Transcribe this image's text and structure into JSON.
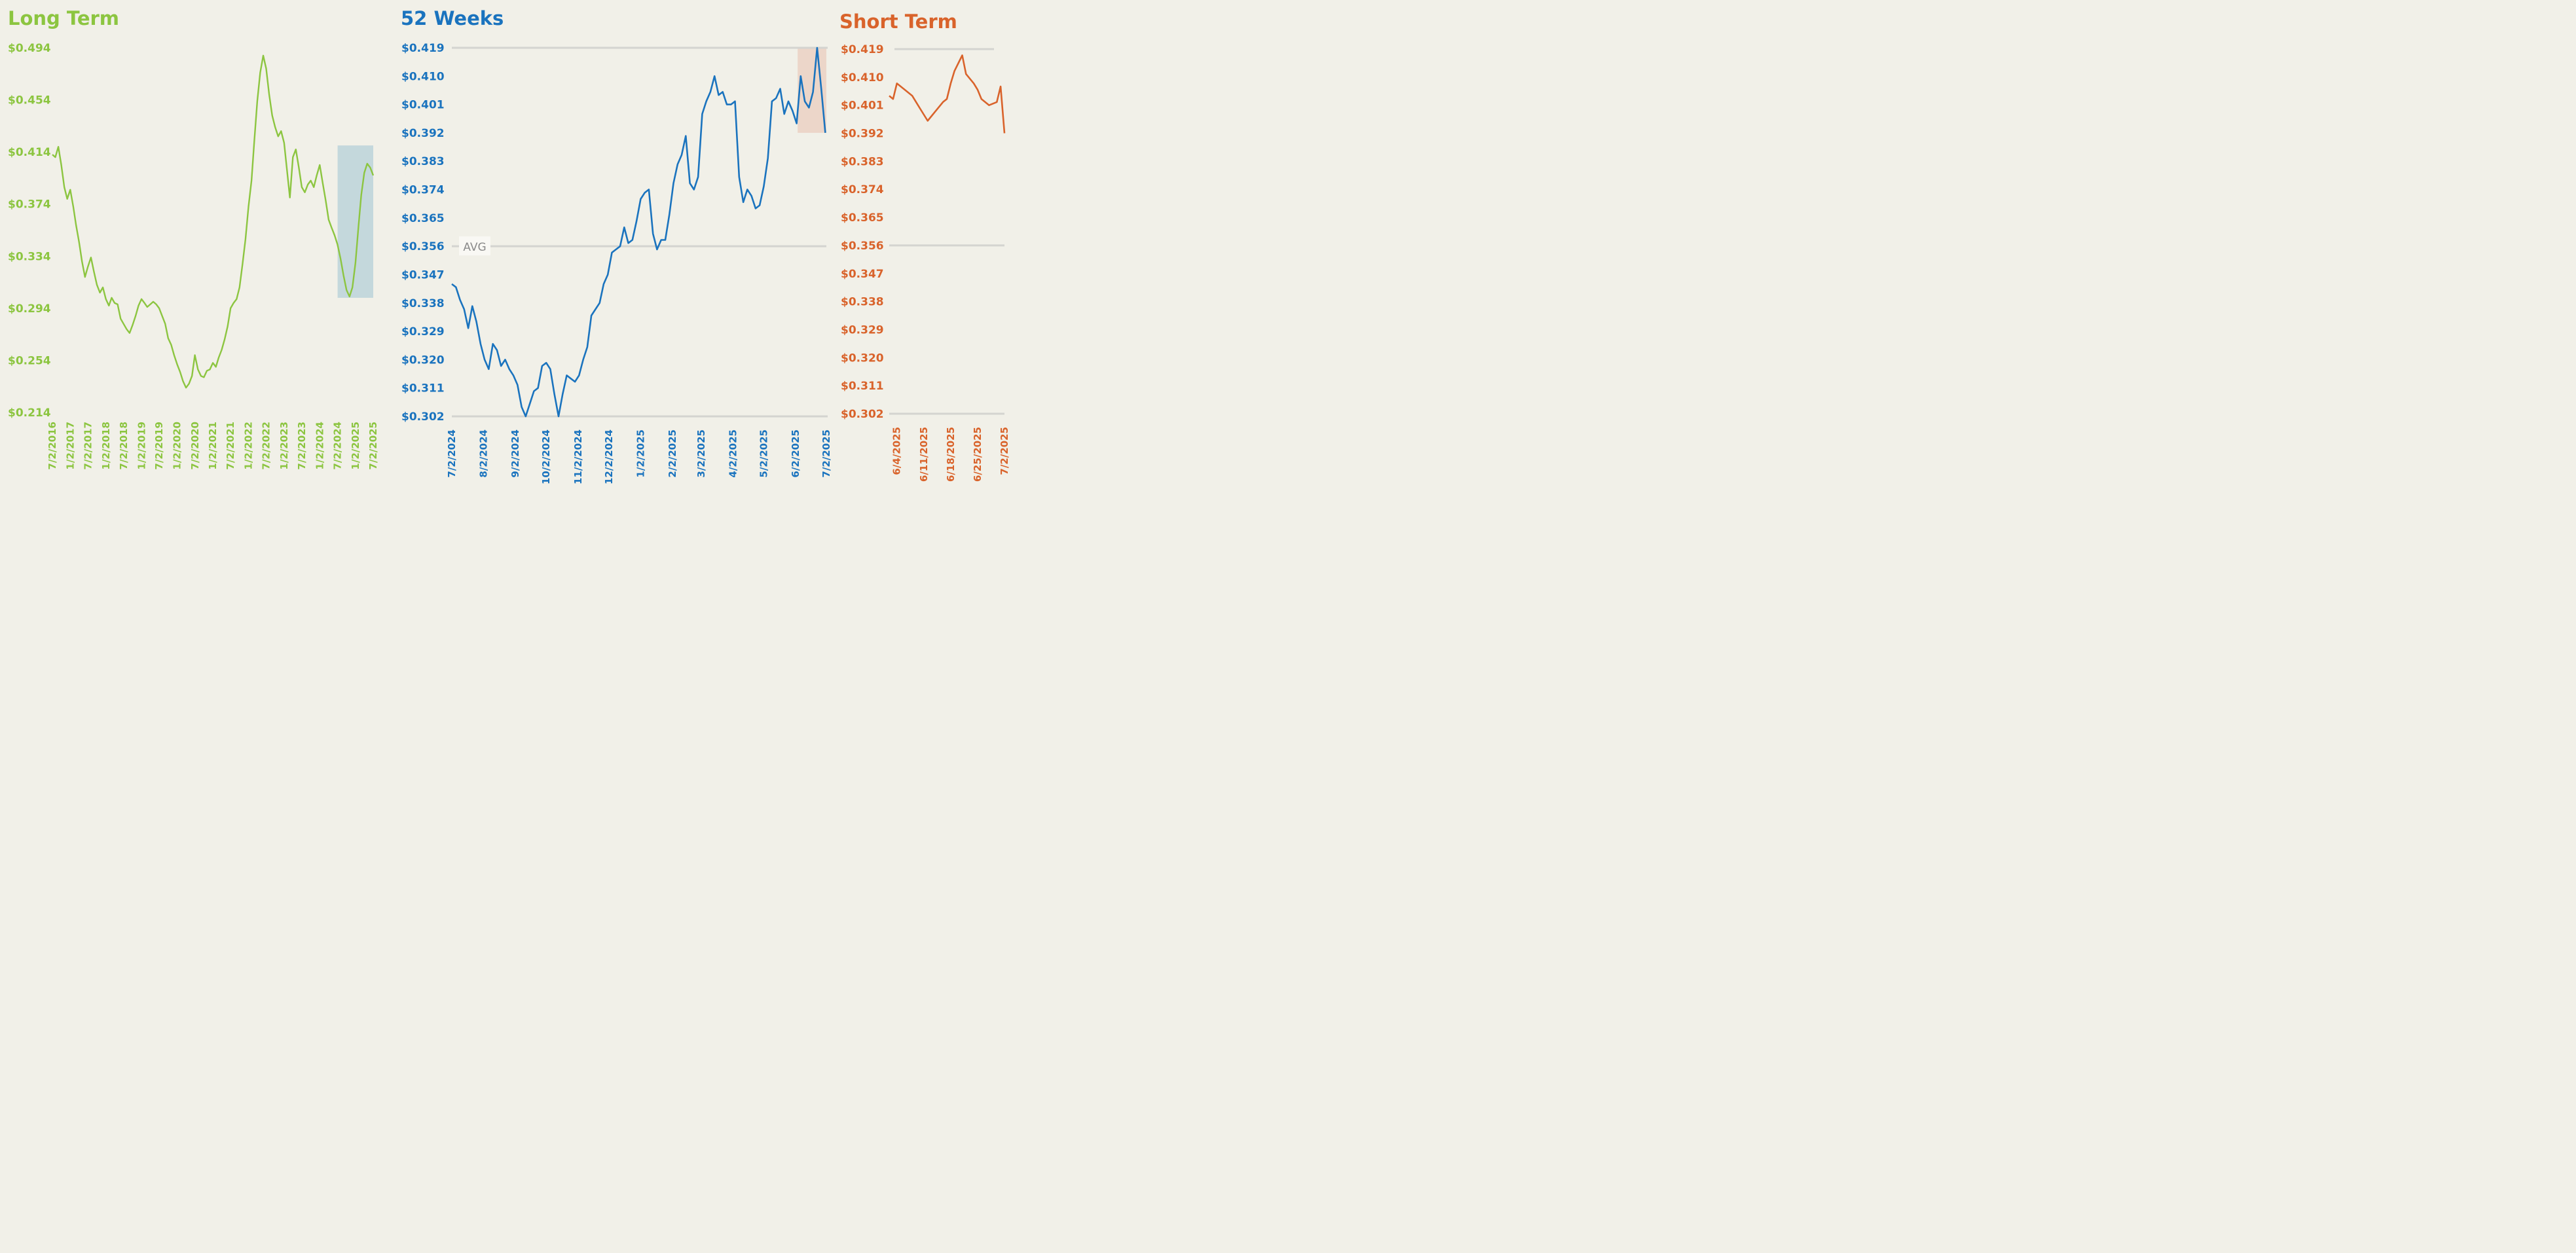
{
  "colors": {
    "long": "#8cc540",
    "weeks52": "#1a73be",
    "short": "#d9632b",
    "grid": "#d4d4d0",
    "long_highlight": "#c4d8dc",
    "weeks52_highlight": "#ecd6c9",
    "background": "#f1f0e8"
  },
  "chart_data": [
    {
      "id": "long",
      "type": "line",
      "title": "Long Term",
      "xlabel": "",
      "ylabel": "",
      "ylim": [
        0.214,
        0.494
      ],
      "xlim": [
        "2016-07-02",
        "2025-07-02"
      ],
      "y_ticks": [
        "$0.494",
        "$0.454",
        "$0.414",
        "$0.374",
        "$0.334",
        "$0.294",
        "$0.254",
        "$0.214"
      ],
      "x_ticks": [
        "7/2/2016",
        "1/2/2017",
        "7/2/2017",
        "1/2/2018",
        "7/2/2018",
        "1/2/2019",
        "7/2/2019",
        "1/2/2020",
        "7/2/2020",
        "1/2/2021",
        "7/2/2021",
        "1/2/2022",
        "7/2/2022",
        "1/2/2023",
        "7/2/2023",
        "1/2/2024",
        "7/2/2024",
        "1/2/2025",
        "7/2/2025"
      ],
      "grid": false,
      "highlight_range": {
        "x": [
          "2024-07-02",
          "2025-07-02"
        ],
        "y": [
          0.302,
          0.419
        ]
      },
      "series": [
        {
          "x": [
            "2016-07-02",
            "2016-08-01",
            "2016-09-01",
            "2016-10-01",
            "2016-11-01",
            "2016-12-01",
            "2017-01-01",
            "2017-02-01",
            "2017-03-01",
            "2017-04-01",
            "2017-05-01",
            "2017-06-01",
            "2017-07-01",
            "2017-08-01",
            "2017-09-01",
            "2017-10-01",
            "2017-11-01",
            "2017-12-01",
            "2018-01-01",
            "2018-02-01",
            "2018-03-01",
            "2018-04-01",
            "2018-05-01",
            "2018-06-01",
            "2018-07-01",
            "2018-08-01",
            "2018-09-01",
            "2018-10-01",
            "2018-11-01",
            "2018-12-01",
            "2019-01-01",
            "2019-02-01",
            "2019-03-01",
            "2019-04-01",
            "2019-05-01",
            "2019-06-01",
            "2019-07-01",
            "2019-08-01",
            "2019-09-01",
            "2019-10-01",
            "2019-11-01",
            "2019-12-01",
            "2020-01-01",
            "2020-02-01",
            "2020-03-01",
            "2020-04-01",
            "2020-05-01",
            "2020-06-01",
            "2020-07-01",
            "2020-08-01",
            "2020-09-01",
            "2020-10-01",
            "2020-11-01",
            "2020-12-01",
            "2021-01-01",
            "2021-02-01",
            "2021-03-01",
            "2021-04-01",
            "2021-05-01",
            "2021-06-01",
            "2021-07-01",
            "2021-08-01",
            "2021-09-01",
            "2021-10-01",
            "2021-11-01",
            "2021-12-01",
            "2022-01-01",
            "2022-02-01",
            "2022-03-01",
            "2022-04-01",
            "2022-05-01",
            "2022-06-01",
            "2022-07-01",
            "2022-08-01",
            "2022-09-01",
            "2022-10-01",
            "2022-11-01",
            "2022-12-01",
            "2023-01-01",
            "2023-02-01",
            "2023-03-01",
            "2023-04-01",
            "2023-05-01",
            "2023-06-01",
            "2023-07-01",
            "2023-08-01",
            "2023-09-01",
            "2023-10-01",
            "2023-11-01",
            "2023-12-01",
            "2024-01-01",
            "2024-02-01",
            "2024-03-01",
            "2024-04-01",
            "2024-05-01",
            "2024-06-01",
            "2024-07-01",
            "2024-08-01",
            "2024-09-01",
            "2024-10-01",
            "2024-11-01",
            "2024-12-01",
            "2025-01-01",
            "2025-02-01",
            "2025-03-01",
            "2025-04-01",
            "2025-05-01",
            "2025-06-01",
            "2025-07-02"
          ],
          "values": [
            0.412,
            0.41,
            0.418,
            0.404,
            0.387,
            0.378,
            0.385,
            0.372,
            0.358,
            0.345,
            0.33,
            0.318,
            0.326,
            0.333,
            0.322,
            0.312,
            0.306,
            0.31,
            0.301,
            0.296,
            0.302,
            0.298,
            0.297,
            0.286,
            0.282,
            0.278,
            0.275,
            0.281,
            0.288,
            0.296,
            0.301,
            0.298,
            0.295,
            0.297,
            0.299,
            0.297,
            0.294,
            0.288,
            0.282,
            0.271,
            0.266,
            0.258,
            0.251,
            0.245,
            0.238,
            0.233,
            0.236,
            0.242,
            0.258,
            0.247,
            0.242,
            0.241,
            0.246,
            0.247,
            0.252,
            0.249,
            0.256,
            0.262,
            0.27,
            0.28,
            0.294,
            0.298,
            0.301,
            0.31,
            0.328,
            0.347,
            0.372,
            0.392,
            0.422,
            0.453,
            0.475,
            0.488,
            0.478,
            0.458,
            0.442,
            0.433,
            0.426,
            0.43,
            0.421,
            0.399,
            0.379,
            0.41,
            0.416,
            0.402,
            0.387,
            0.383,
            0.389,
            0.392,
            0.387,
            0.396,
            0.404,
            0.39,
            0.377,
            0.362,
            0.356,
            0.35,
            0.343,
            0.332,
            0.319,
            0.308,
            0.303,
            0.31,
            0.329,
            0.357,
            0.381,
            0.398,
            0.405,
            0.402,
            0.396
          ]
        }
      ]
    },
    {
      "id": "weeks52",
      "type": "line",
      "title": "52 Weeks",
      "xlabel": "",
      "ylabel": "",
      "ylim": [
        0.302,
        0.419
      ],
      "xlim": [
        "2024-07-02",
        "2025-07-02"
      ],
      "y_ticks": [
        "$0.419",
        "$0.410",
        "$0.401",
        "$0.392",
        "$0.383",
        "$0.374",
        "$0.365",
        "$0.356",
        "$0.347",
        "$0.338",
        "$0.329",
        "$0.320",
        "$0.311",
        "$0.302"
      ],
      "x_ticks": [
        "7/2/2024",
        "8/2/2024",
        "9/2/2024",
        "10/2/2024",
        "11/2/2024",
        "12/2/2024",
        "1/2/2025",
        "2/2/2025",
        "3/2/2025",
        "4/2/2025",
        "5/2/2025",
        "6/2/2025",
        "7/2/2025"
      ],
      "grid": true,
      "reference_lines": [
        {
          "label": "AVG",
          "value": 0.356
        }
      ],
      "highlight_range": {
        "x": [
          "2025-06-04",
          "2025-07-02"
        ],
        "y": [
          0.392,
          0.419
        ]
      },
      "series": [
        {
          "x": [
            "2024-07-02",
            "2024-07-06",
            "2024-07-10",
            "2024-07-14",
            "2024-07-18",
            "2024-07-22",
            "2024-07-26",
            "2024-07-30",
            "2024-08-03",
            "2024-08-07",
            "2024-08-11",
            "2024-08-15",
            "2024-08-19",
            "2024-08-23",
            "2024-08-27",
            "2024-08-31",
            "2024-09-04",
            "2024-09-08",
            "2024-09-12",
            "2024-09-16",
            "2024-09-20",
            "2024-09-24",
            "2024-09-28",
            "2024-10-02",
            "2024-10-06",
            "2024-10-10",
            "2024-10-14",
            "2024-10-18",
            "2024-10-22",
            "2024-10-26",
            "2024-10-30",
            "2024-11-03",
            "2024-11-07",
            "2024-11-11",
            "2024-11-15",
            "2024-11-19",
            "2024-11-23",
            "2024-11-27",
            "2024-12-01",
            "2024-12-05",
            "2024-12-09",
            "2024-12-13",
            "2024-12-17",
            "2024-12-21",
            "2024-12-25",
            "2024-12-29",
            "2025-01-02",
            "2025-01-06",
            "2025-01-10",
            "2025-01-14",
            "2025-01-18",
            "2025-01-22",
            "2025-01-26",
            "2025-01-30",
            "2025-02-03",
            "2025-02-07",
            "2025-02-11",
            "2025-02-15",
            "2025-02-19",
            "2025-02-23",
            "2025-02-27",
            "2025-03-03",
            "2025-03-07",
            "2025-03-11",
            "2025-03-15",
            "2025-03-19",
            "2025-03-23",
            "2025-03-27",
            "2025-03-31",
            "2025-04-04",
            "2025-04-08",
            "2025-04-12",
            "2025-04-16",
            "2025-04-20",
            "2025-04-24",
            "2025-04-28",
            "2025-05-02",
            "2025-05-06",
            "2025-05-10",
            "2025-05-14",
            "2025-05-18",
            "2025-05-22",
            "2025-05-26",
            "2025-05-30",
            "2025-06-03",
            "2025-06-07",
            "2025-06-11",
            "2025-06-15",
            "2025-06-19",
            "2025-06-23",
            "2025-06-27",
            "2025-07-01"
          ],
          "values": [
            0.344,
            0.343,
            0.339,
            0.336,
            0.33,
            0.337,
            0.332,
            0.325,
            0.32,
            0.317,
            0.325,
            0.323,
            0.318,
            0.32,
            0.317,
            0.315,
            0.312,
            0.305,
            0.302,
            0.306,
            0.31,
            0.311,
            0.318,
            0.319,
            0.317,
            0.309,
            0.302,
            0.309,
            0.315,
            0.314,
            0.313,
            0.315,
            0.32,
            0.324,
            0.334,
            0.336,
            0.338,
            0.344,
            0.347,
            0.354,
            0.355,
            0.356,
            0.362,
            0.357,
            0.358,
            0.364,
            0.371,
            0.373,
            0.374,
            0.36,
            0.355,
            0.358,
            0.358,
            0.366,
            0.376,
            0.382,
            0.385,
            0.391,
            0.376,
            0.374,
            0.378,
            0.398,
            0.402,
            0.405,
            0.41,
            0.404,
            0.405,
            0.401,
            0.401,
            0.402,
            0.378,
            0.37,
            0.374,
            0.372,
            0.368,
            0.369,
            0.375,
            0.384,
            0.402,
            0.403,
            0.406,
            0.398,
            0.402,
            0.399,
            0.395,
            0.41,
            0.402,
            0.4,
            0.405,
            0.419,
            0.406,
            0.392
          ]
        }
      ]
    },
    {
      "id": "short",
      "type": "line",
      "title": "Short Term",
      "xlabel": "",
      "ylabel": "",
      "ylim": [
        0.302,
        0.419
      ],
      "xlim": [
        "2025-06-02",
        "2025-07-02"
      ],
      "y_ticks": [
        "$0.419",
        "$0.410",
        "$0.401",
        "$0.392",
        "$0.383",
        "$0.374",
        "$0.365",
        "$0.356",
        "$0.347",
        "$0.338",
        "$0.329",
        "$0.320",
        "$0.311",
        "$0.302"
      ],
      "x_ticks": [
        "6/4/2025",
        "6/11/2025",
        "6/18/2025",
        "6/25/2025",
        "7/2/2025"
      ],
      "grid": "major only",
      "series": [
        {
          "x": [
            "2025-06-02",
            "2025-06-03",
            "2025-06-04",
            "2025-06-06",
            "2025-06-08",
            "2025-06-10",
            "2025-06-11",
            "2025-06-12",
            "2025-06-14",
            "2025-06-16",
            "2025-06-17",
            "2025-06-18",
            "2025-06-19",
            "2025-06-21",
            "2025-06-22",
            "2025-06-24",
            "2025-06-25",
            "2025-06-26",
            "2025-06-28",
            "2025-06-30",
            "2025-07-01",
            "2025-07-02"
          ],
          "values": [
            0.404,
            0.403,
            0.408,
            0.406,
            0.404,
            0.4,
            0.398,
            0.396,
            0.399,
            0.402,
            0.403,
            0.408,
            0.412,
            0.417,
            0.411,
            0.408,
            0.406,
            0.403,
            0.401,
            0.402,
            0.407,
            0.392
          ]
        }
      ]
    }
  ]
}
